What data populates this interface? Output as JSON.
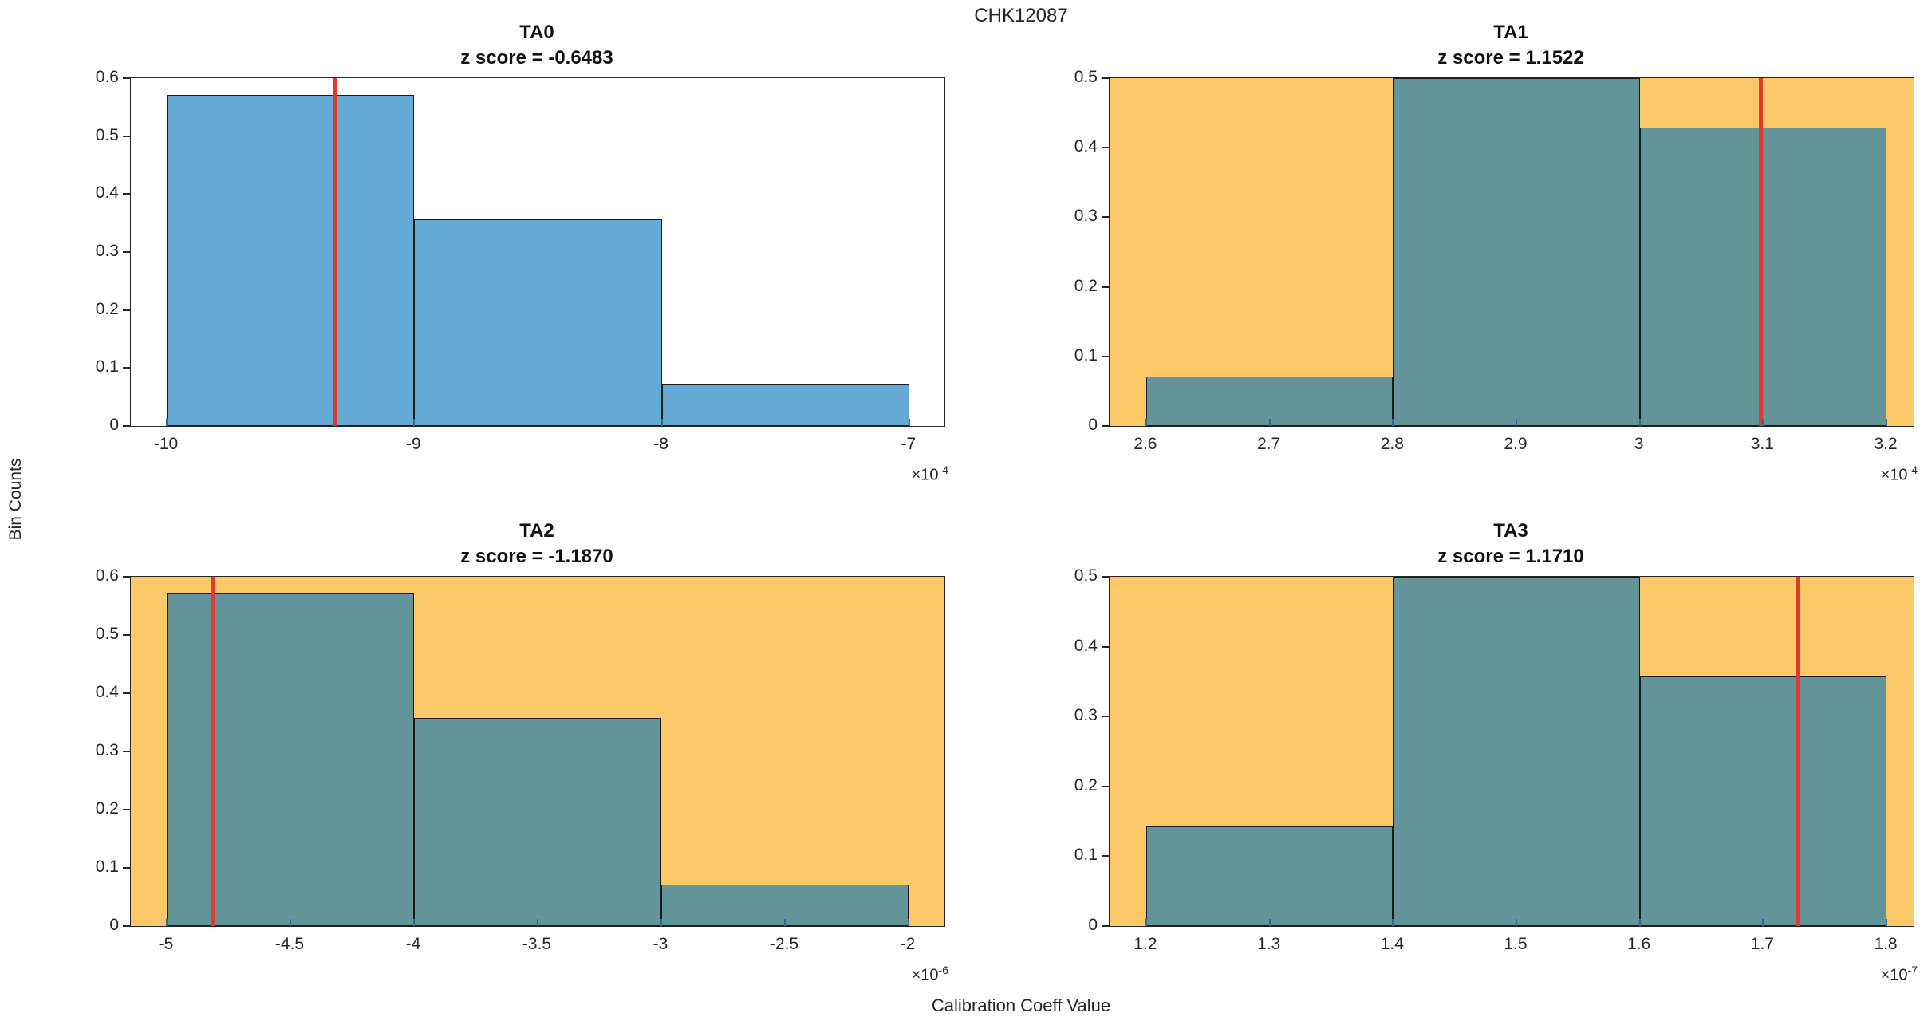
{
  "figure_title": "CHK12087",
  "ylabel": "Bin Counts",
  "xlabel": "Calibration Coeff Value",
  "colors": {
    "plain_bg": "#ffffff",
    "plain_bar": "#65a9d5",
    "flagged_bg": "#fdc968",
    "flagged_bar": "#63949a",
    "bar_edge": "#1a1a1a",
    "red_line": "#e2392c",
    "axis": "#262626"
  },
  "chart_data": [
    {
      "type": "bar",
      "name": "TA0",
      "title": "TA0",
      "subtitle": "z score = -0.6483",
      "z_score": -0.6483,
      "flagged": false,
      "bin_edges": [
        -10,
        -9,
        -8,
        -7
      ],
      "values": [
        0.5714,
        0.3571,
        0.0714
      ],
      "red_line_x": -9.32,
      "xlim": [
        -10.145,
        -6.858
      ],
      "ylim": [
        0,
        0.6
      ],
      "xtick_values": [
        -10,
        -9,
        -8,
        -7
      ],
      "xtick_labels": [
        "-10",
        "-9",
        "-8",
        "-7"
      ],
      "ytick_values": [
        0,
        0.1,
        0.2,
        0.3,
        0.4,
        0.5,
        0.6
      ],
      "ytick_labels": [
        "0",
        "0.1",
        "0.2",
        "0.3",
        "0.4",
        "0.5",
        "0.6"
      ],
      "offset_base": "×10",
      "offset_exp": "-4",
      "grid": "off",
      "legend": "none"
    },
    {
      "type": "bar",
      "name": "TA1",
      "title": "TA1",
      "subtitle": "z score = 1.1522",
      "z_score": 1.1522,
      "flagged": true,
      "bin_edges": [
        2.6,
        2.8,
        3.0,
        3.2
      ],
      "values": [
        0.0714,
        0.5,
        0.4286
      ],
      "red_line_x": 3.098,
      "xlim": [
        2.5703,
        3.222
      ],
      "ylim": [
        0,
        0.5
      ],
      "xtick_values": [
        2.6,
        2.7,
        2.8,
        2.9,
        3.0,
        3.1,
        3.2
      ],
      "xtick_labels": [
        "2.6",
        "2.7",
        "2.8",
        "2.9",
        "3",
        "3.1",
        "3.2"
      ],
      "ytick_values": [
        0,
        0.1,
        0.2,
        0.3,
        0.4,
        0.5
      ],
      "ytick_labels": [
        "0",
        "0.1",
        "0.2",
        "0.3",
        "0.4",
        "0.5"
      ],
      "offset_base": "×10",
      "offset_exp": "-4",
      "grid": "off",
      "legend": "none"
    },
    {
      "type": "bar",
      "name": "TA2",
      "title": "TA2",
      "subtitle": "z score = -1.1870",
      "z_score": -1.187,
      "flagged": true,
      "bin_edges": [
        -5,
        -4,
        -3,
        -2
      ],
      "values": [
        0.5714,
        0.3571,
        0.0714
      ],
      "red_line_x": -4.81,
      "xlim": [
        -5.145,
        -1.855
      ],
      "ylim": [
        0,
        0.6
      ],
      "xtick_values": [
        -5,
        -4.5,
        -4,
        -3.5,
        -3,
        -2.5,
        -2
      ],
      "xtick_labels": [
        "-5",
        "-4.5",
        "-4",
        "-3.5",
        "-3",
        "-2.5",
        "-2"
      ],
      "ytick_values": [
        0,
        0.1,
        0.2,
        0.3,
        0.4,
        0.5,
        0.6
      ],
      "ytick_labels": [
        "0",
        "0.1",
        "0.2",
        "0.3",
        "0.4",
        "0.5",
        "0.6"
      ],
      "offset_base": "×10",
      "offset_exp": "-6",
      "grid": "off",
      "legend": "none"
    },
    {
      "type": "bar",
      "name": "TA3",
      "title": "TA3",
      "subtitle": "z score = 1.1710",
      "z_score": 1.171,
      "flagged": true,
      "bin_edges": [
        1.2,
        1.4,
        1.6,
        1.8
      ],
      "values": [
        0.1429,
        0.5,
        0.3571
      ],
      "red_line_x": 1.728,
      "xlim": [
        1.1703,
        1.822
      ],
      "ylim": [
        0,
        0.5
      ],
      "xtick_values": [
        1.2,
        1.3,
        1.4,
        1.5,
        1.6,
        1.7,
        1.8
      ],
      "xtick_labels": [
        "1.2",
        "1.3",
        "1.4",
        "1.5",
        "1.6",
        "1.7",
        "1.8"
      ],
      "ytick_values": [
        0,
        0.1,
        0.2,
        0.3,
        0.4,
        0.5
      ],
      "ytick_labels": [
        "0",
        "0.1",
        "0.2",
        "0.3",
        "0.4",
        "0.5"
      ],
      "offset_base": "×10",
      "offset_exp": "-7",
      "grid": "off",
      "legend": "none"
    }
  ]
}
